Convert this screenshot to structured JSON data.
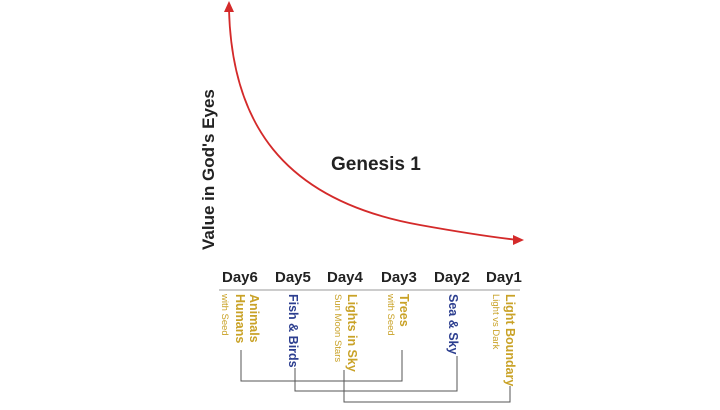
{
  "title": "Genesis 1",
  "y_axis_label": "Value in God's Eyes",
  "colors": {
    "curve": "#d42a2a",
    "gold": "#c9a227",
    "blue": "#2c3e8f",
    "axis_text": "#222222",
    "connector": "#555555"
  },
  "days": [
    {
      "day": "Day6",
      "line1": "Animals",
      "line2": "Humans",
      "sub": "with Seed",
      "color": "gold"
    },
    {
      "day": "Day5",
      "line1": "Fish & Birds",
      "line2": "",
      "sub": "",
      "color": "blue"
    },
    {
      "day": "Day4",
      "line1": "Lights in Sky",
      "line2": "",
      "sub": "Sun Moon Stars",
      "color": "gold"
    },
    {
      "day": "Day3",
      "line1": "Trees",
      "line2": "",
      "sub": "with Seed",
      "color": "gold"
    },
    {
      "day": "Day2",
      "line1": "Sea & Sky",
      "line2": "",
      "sub": "",
      "color": "blue"
    },
    {
      "day": "Day1",
      "line1": "Light Boundary",
      "line2": "",
      "sub": "Light vs Dark",
      "color": "gold"
    }
  ]
}
